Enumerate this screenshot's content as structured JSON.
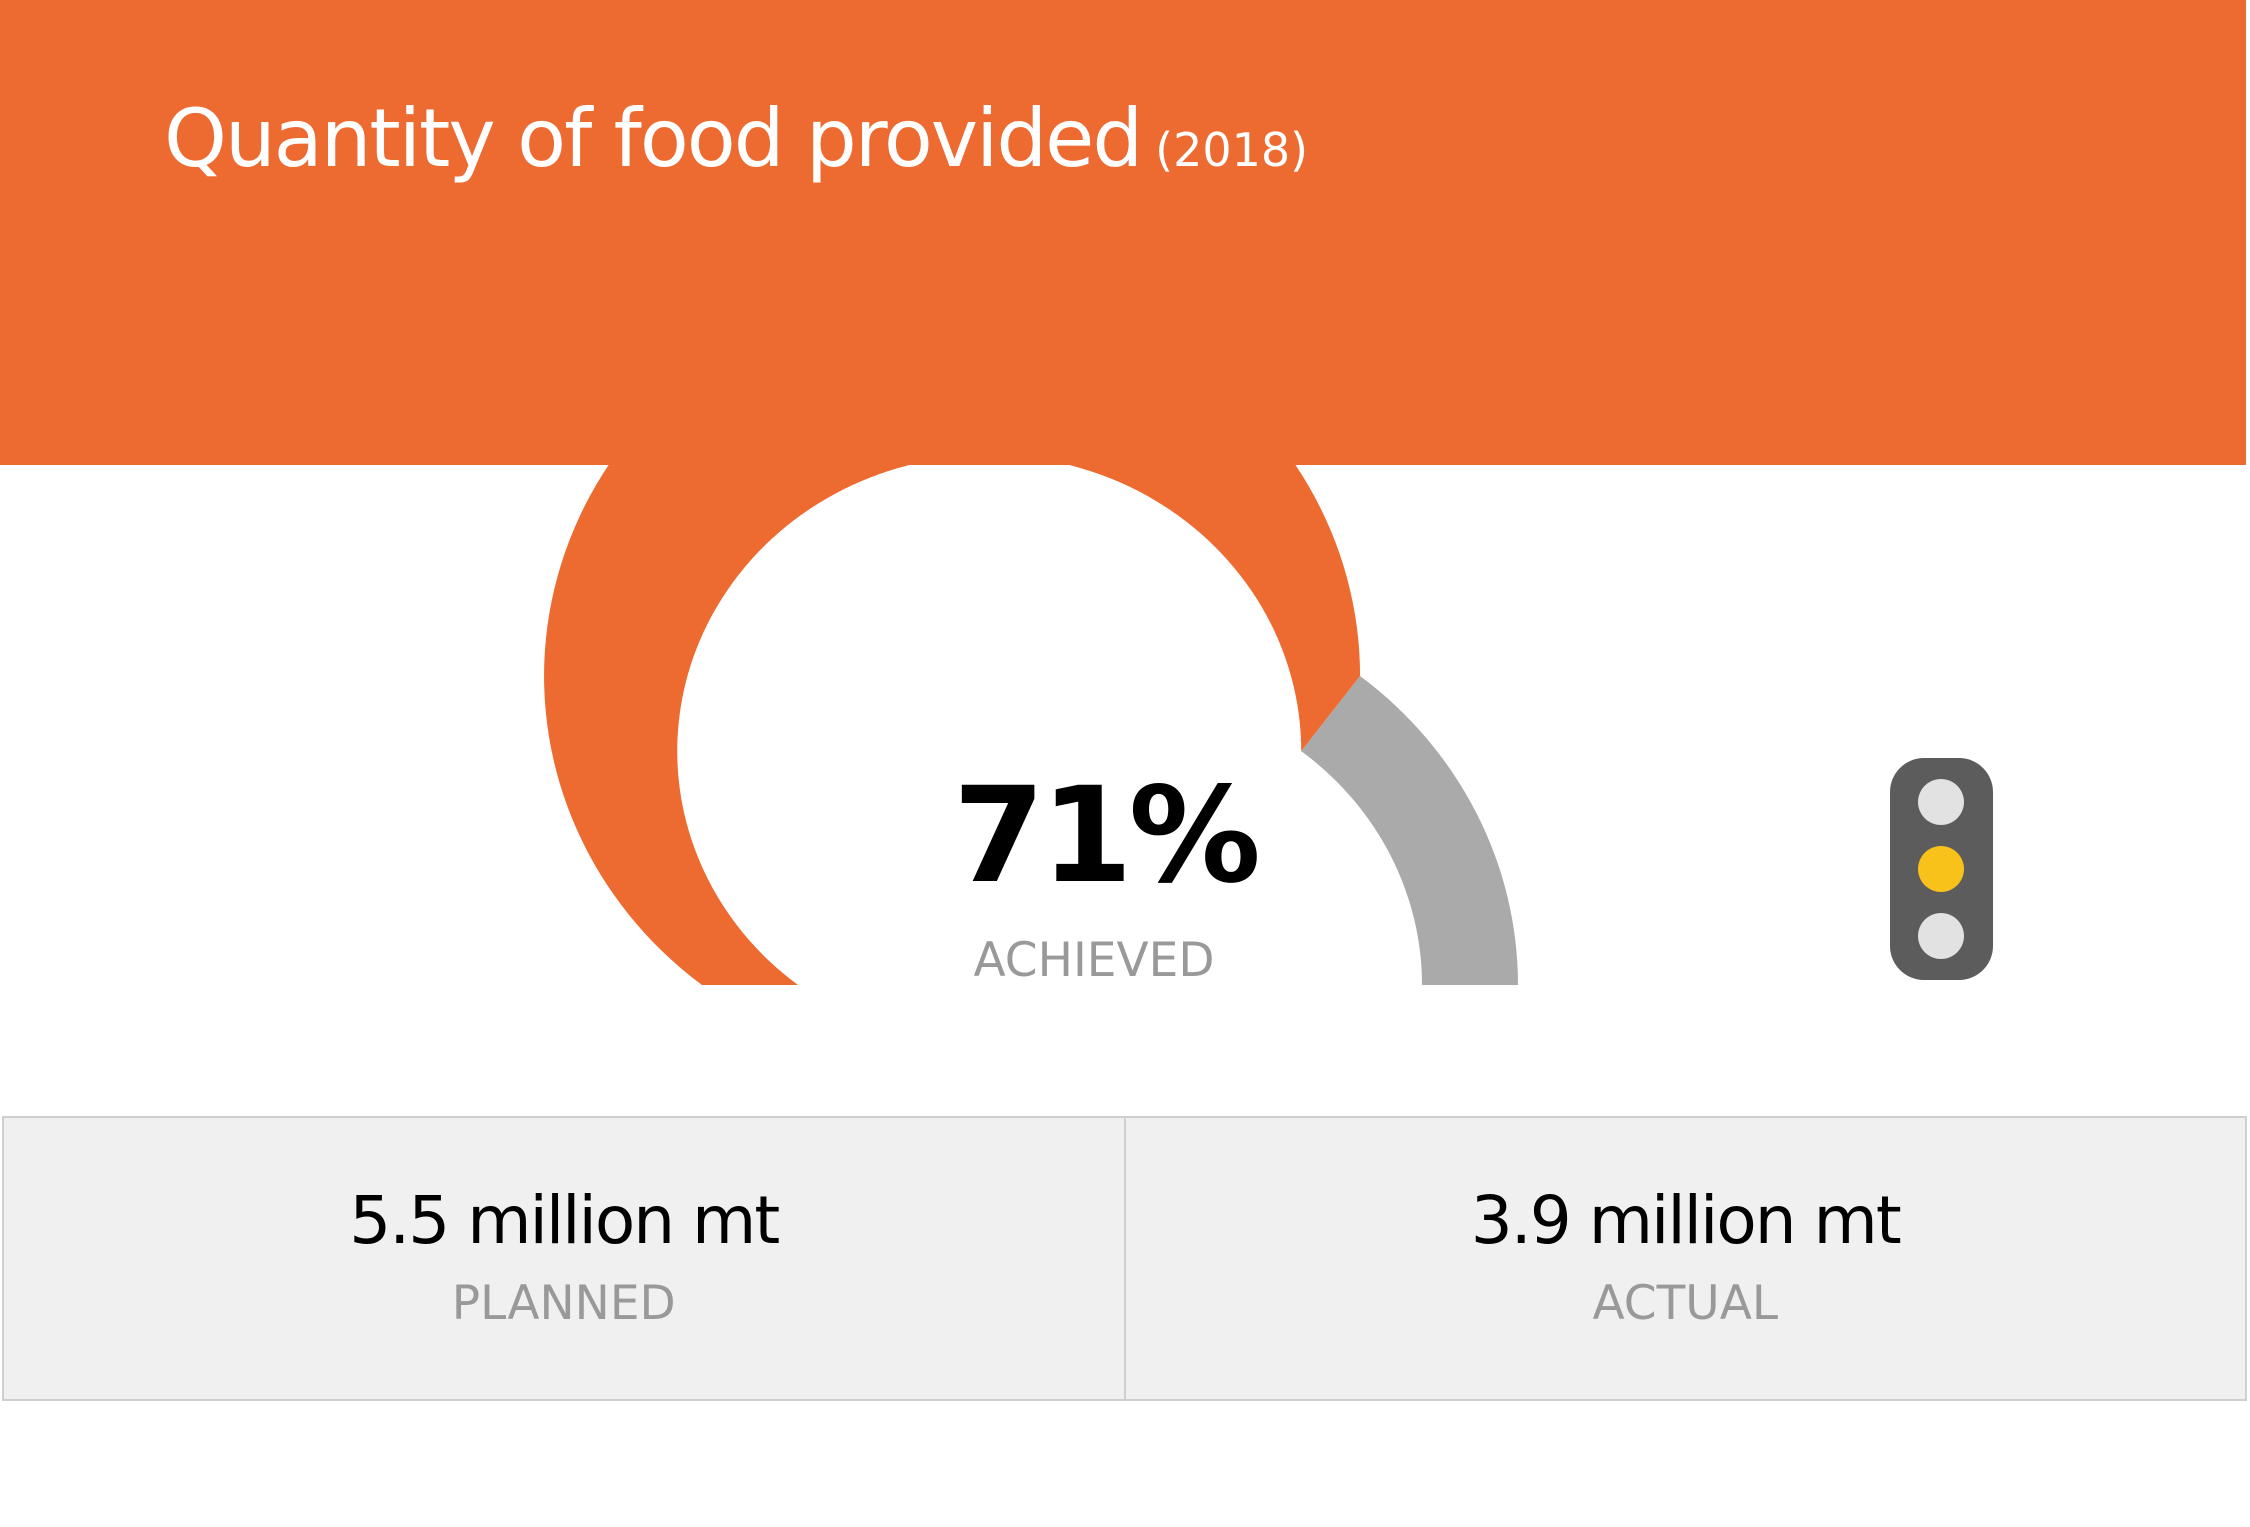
{
  "header": {
    "title": "Quantity of food provided",
    "year": "(2018)",
    "background_color": "#ED6A31"
  },
  "gauge": {
    "percent_label": "71%",
    "percent_value": 71,
    "caption": "ACHIEVED",
    "filled_color": "#ED6A31",
    "remaining_color": "#A9AAA9"
  },
  "status_light": {
    "icon": "traffic-light-icon",
    "active": "amber",
    "lamps": [
      {
        "name": "top",
        "color": "#E2E2E2"
      },
      {
        "name": "middle",
        "color": "#F8C21B"
      },
      {
        "name": "bottom",
        "color": "#E2E2E2"
      }
    ]
  },
  "stats": [
    {
      "value": "5.5 million mt",
      "label": "PLANNED"
    },
    {
      "value": "3.9 million mt",
      "label": "ACTUAL"
    }
  ],
  "chart_data": {
    "type": "gauge",
    "title": "Quantity of food provided (2018)",
    "value": 71,
    "unit": "%",
    "range": [
      0,
      100
    ],
    "caption": "ACHIEVED",
    "planned": {
      "value": 5.5,
      "unit": "million mt",
      "label": "PLANNED"
    },
    "actual": {
      "value": 3.9,
      "unit": "million mt",
      "label": "ACTUAL"
    },
    "status": "amber"
  }
}
